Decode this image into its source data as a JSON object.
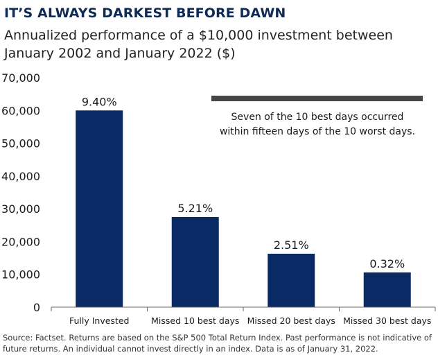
{
  "header": {
    "title": "IT’S ALWAYS DARKEST BEFORE DAWN",
    "subtitle": "Annualized performance of a $10,000 investment between January 2002 and January 2022 ($)"
  },
  "annotation": {
    "lines": [
      "Seven of the 10 best days occurred",
      "within fifteen days of the 10 worst days."
    ]
  },
  "source": "Source: Factset. Returns are based on the S&P 500 Total Return Index. Past performance is not indicative of future returns. An individual cannot invest directly in an index. Data is as of January 31, 2022.",
  "colors": {
    "bar": "#0a2a66",
    "annotation_bar": "#454545",
    "axis": "#666666"
  },
  "chart_data": {
    "type": "bar",
    "title": "IT’S ALWAYS DARKEST BEFORE DAWN",
    "xlabel": "",
    "ylabel": "",
    "categories": [
      "Fully Invested",
      "Missed 10 best days",
      "Missed 20 best days",
      "Missed 30 best days"
    ],
    "values": [
      60000,
      27500,
      16300,
      10600
    ],
    "data_labels": [
      "9.40%",
      "5.21%",
      "2.51%",
      "0.32%"
    ],
    "ylim": [
      0,
      70000
    ],
    "yticks": [
      0,
      10000,
      20000,
      30000,
      40000,
      50000,
      60000,
      70000
    ],
    "ytick_labels": [
      "0",
      "10,000",
      "20,000",
      "30,000",
      "40,000",
      "50,000",
      "60,000",
      "70,000"
    ],
    "grid": false,
    "legend": "none"
  }
}
